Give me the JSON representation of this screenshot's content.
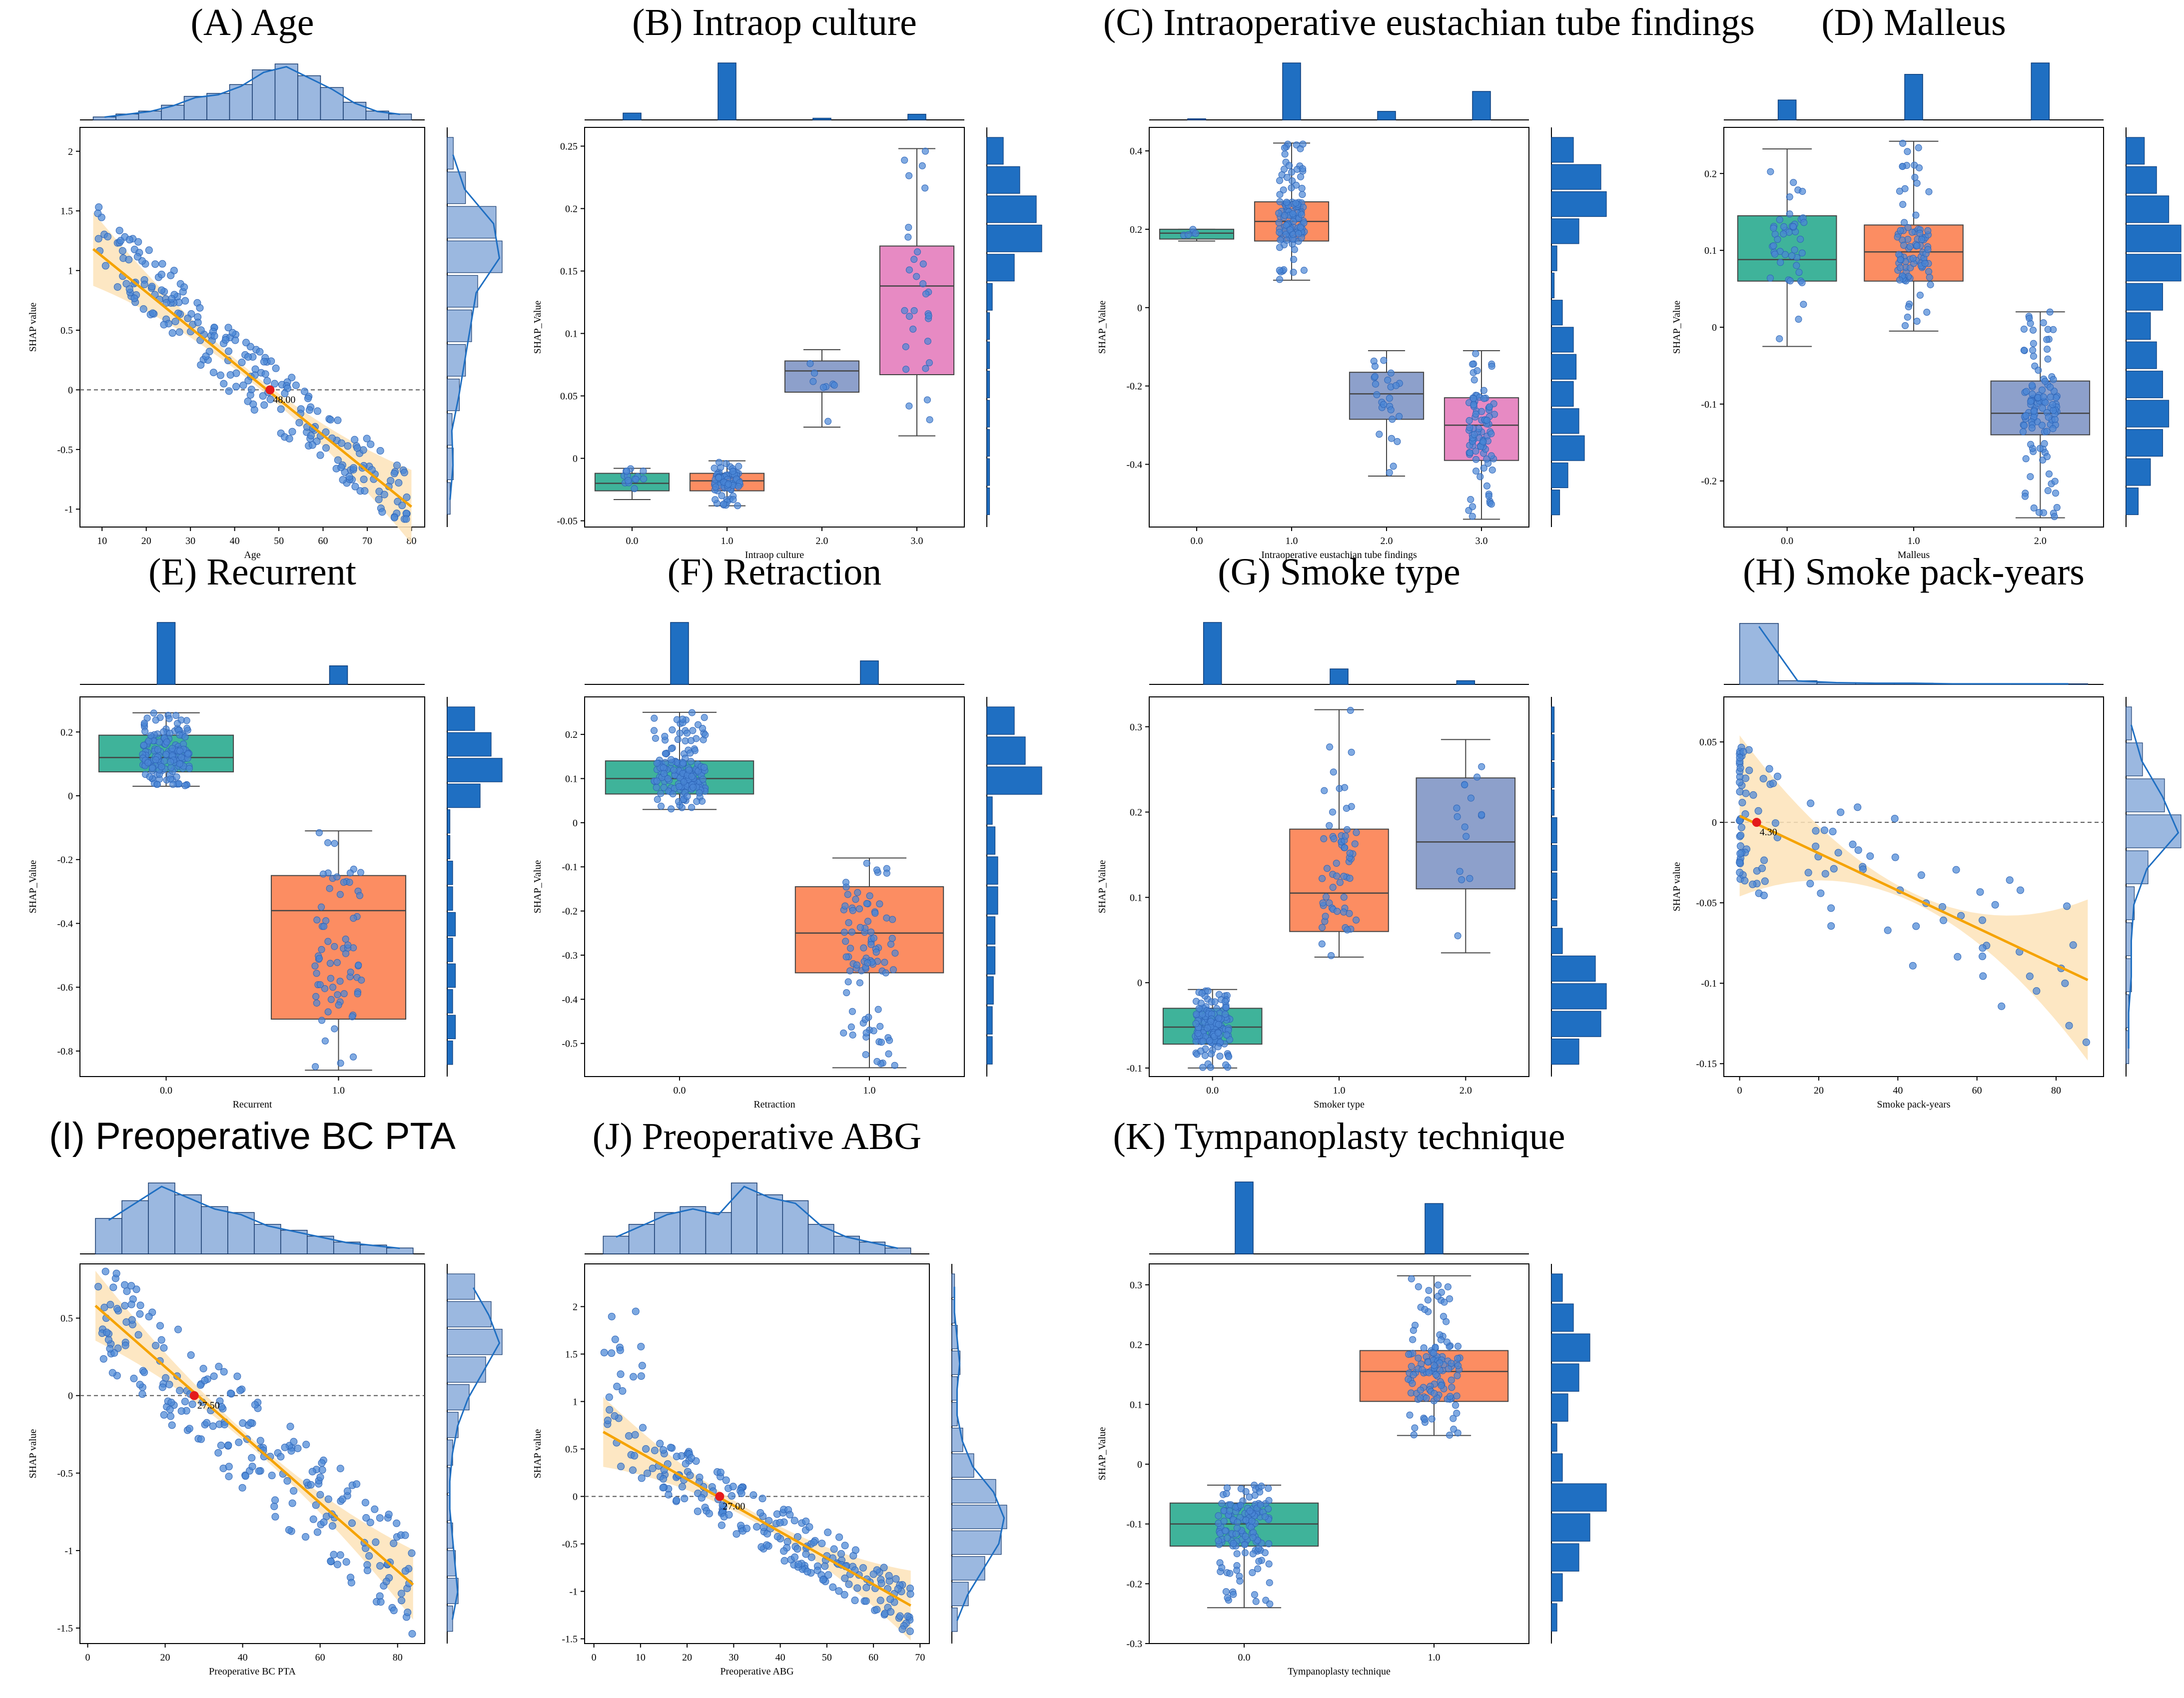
{
  "figure": {
    "title": "SHAP dependence plots with marginal distributions"
  },
  "colors": {
    "scatter": "#4a86d6",
    "scatter_edge": "#2f66b8",
    "fit_line": "#f5a300",
    "ci_band": "#fde3b8",
    "hist_bar": "#1f6fc2",
    "hist_light": "#9bb8e0",
    "box_teal": "#3fb39a",
    "box_orange": "#fc8d62",
    "box_purple": "#8da0cb",
    "box_pink": "#e78ac3",
    "zero_line": "#555555",
    "ref_point": "#e41a1c"
  },
  "chart_data": [
    {
      "id": "A",
      "title": "(A) Age",
      "type": "scatter",
      "xlabel": "Age",
      "ylabel": "SHAP value",
      "xlim": [
        5,
        83
      ],
      "ylim": [
        -1.15,
        2.2
      ],
      "xticks": [
        10,
        20,
        30,
        40,
        50,
        60,
        70,
        80
      ],
      "yticks": [
        -1.0,
        -0.5,
        0.0,
        0.5,
        1.0,
        1.5,
        2.0
      ],
      "trend": {
        "x": [
          8,
          80
        ],
        "y": [
          1.18,
          -0.98
        ]
      },
      "ref_point": {
        "x": 48,
        "y": 0.0,
        "label": "48.00"
      },
      "cloud": {
        "x_range": [
          8,
          80
        ],
        "jitter": 0.28,
        "n": 240
      },
      "top_hist": [
        1,
        2,
        3,
        5,
        8,
        9,
        12,
        17,
        19,
        15,
        11,
        6,
        3,
        2
      ],
      "right_hist": [
        0.5,
        1,
        0.8,
        2,
        3,
        4,
        5,
        9,
        8,
        3,
        1
      ]
    },
    {
      "id": "B",
      "title": "(B) Intraop culture",
      "type": "box",
      "xlabel": "Intraop culture",
      "ylabel": "SHAP_Value",
      "categories": [
        "0.0",
        "1.0",
        "2.0",
        "3.0"
      ],
      "ylim": [
        -0.055,
        0.265
      ],
      "yticks": [
        -0.05,
        0.0,
        0.05,
        0.1,
        0.15,
        0.2,
        0.25
      ],
      "boxes": [
        {
          "min": -0.033,
          "q1": -0.026,
          "median": -0.02,
          "q3": -0.012,
          "max": -0.008,
          "n": 14
        },
        {
          "min": -0.038,
          "q1": -0.026,
          "median": -0.018,
          "q3": -0.012,
          "max": -0.002,
          "n": 80
        },
        {
          "min": 0.025,
          "q1": 0.053,
          "median": 0.07,
          "q3": 0.078,
          "max": 0.087,
          "n": 8
        },
        {
          "min": 0.018,
          "q1": 0.067,
          "median": 0.138,
          "q3": 0.17,
          "max": 0.248,
          "n": 30
        }
      ],
      "top_hist": [
        0.12,
        1.0,
        0.03,
        0.1
      ],
      "right_hist": [
        0.05,
        0.05,
        0.05,
        0.05,
        0.05,
        0.05,
        0.05,
        0.1,
        0.5,
        1.0,
        0.9,
        0.6,
        0.3
      ]
    },
    {
      "id": "C",
      "title": "(C) Intraoperative eustachian tube findings",
      "type": "box",
      "xlabel": "Intraoperative eustachian tube findings",
      "ylabel": "SHAP_Value",
      "categories": [
        "0.0",
        "1.0",
        "2.0",
        "3.0"
      ],
      "ylim": [
        -0.56,
        0.46
      ],
      "yticks": [
        -0.4,
        -0.2,
        0.0,
        0.2,
        0.4
      ],
      "boxes": [
        {
          "min": 0.17,
          "q1": 0.175,
          "median": 0.19,
          "q3": 0.2,
          "max": 0.2,
          "n": 5
        },
        {
          "min": 0.07,
          "q1": 0.17,
          "median": 0.22,
          "q3": 0.27,
          "max": 0.42,
          "n": 120
        },
        {
          "min": -0.43,
          "q1": -0.285,
          "median": -0.22,
          "q3": -0.165,
          "max": -0.11,
          "n": 25
        },
        {
          "min": -0.54,
          "q1": -0.39,
          "median": -0.3,
          "q3": -0.23,
          "max": -0.11,
          "n": 90
        }
      ],
      "top_hist": [
        0.02,
        1.0,
        0.15,
        0.5
      ],
      "right_hist": [
        0.15,
        0.3,
        0.6,
        0.5,
        0.4,
        0.45,
        0.4,
        0.2,
        0.05,
        0.1,
        0.5,
        1.0,
        0.9,
        0.4
      ]
    },
    {
      "id": "D",
      "title": "(D) Malleus",
      "type": "box",
      "xlabel": "Malleus",
      "ylabel": "SHAP_Value",
      "categories": [
        "0.0",
        "1.0",
        "2.0"
      ],
      "ylim": [
        -0.26,
        0.26
      ],
      "yticks": [
        -0.2,
        -0.1,
        0.0,
        0.1,
        0.2
      ],
      "boxes": [
        {
          "min": -0.025,
          "q1": 0.06,
          "median": 0.088,
          "q3": 0.145,
          "max": 0.232,
          "n": 45
        },
        {
          "min": -0.005,
          "q1": 0.06,
          "median": 0.098,
          "q3": 0.133,
          "max": 0.242,
          "n": 90
        },
        {
          "min": -0.248,
          "q1": -0.14,
          "median": -0.112,
          "q3": -0.07,
          "max": 0.02,
          "n": 110
        }
      ],
      "top_hist": [
        0.35,
        0.8,
        1.0
      ],
      "right_hist": [
        0.2,
        0.4,
        0.6,
        0.7,
        0.6,
        0.5,
        0.4,
        0.6,
        0.9,
        0.9,
        0.7,
        0.5,
        0.3
      ]
    },
    {
      "id": "E",
      "title": "(E) Recurrent",
      "type": "box",
      "xlabel": "Recurrent",
      "ylabel": "SHAP_Value",
      "categories": [
        "0.0",
        "1.0"
      ],
      "ylim": [
        -0.88,
        0.31
      ],
      "yticks": [
        -0.8,
        -0.6,
        -0.4,
        -0.2,
        0.0,
        0.2
      ],
      "boxes": [
        {
          "min": 0.03,
          "q1": 0.075,
          "median": 0.12,
          "q3": 0.19,
          "max": 0.26,
          "n": 160
        },
        {
          "min": -0.86,
          "q1": -0.7,
          "median": -0.36,
          "q3": -0.25,
          "max": -0.11,
          "n": 70
        }
      ],
      "top_hist": [
        1.0,
        0.3
      ],
      "right_hist": [
        0.1,
        0.15,
        0.1,
        0.15,
        0.1,
        0.15,
        0.1,
        0.1,
        0.05,
        0.05,
        0.6,
        1.0,
        0.8,
        0.5
      ]
    },
    {
      "id": "F",
      "title": "(F) Retraction",
      "type": "box",
      "xlabel": "Retraction",
      "ylabel": "SHAP_Value",
      "categories": [
        "0.0",
        "1.0"
      ],
      "ylim": [
        -0.575,
        0.285
      ],
      "yticks": [
        -0.5,
        -0.4,
        -0.3,
        -0.2,
        -0.1,
        0.0,
        0.1,
        0.2
      ],
      "boxes": [
        {
          "min": 0.03,
          "q1": 0.065,
          "median": 0.1,
          "q3": 0.14,
          "max": 0.25,
          "n": 170
        },
        {
          "min": -0.555,
          "q1": -0.34,
          "median": -0.25,
          "q3": -0.145,
          "max": -0.08,
          "n": 90
        }
      ],
      "top_hist": [
        1.0,
        0.38
      ],
      "right_hist": [
        0.1,
        0.1,
        0.12,
        0.15,
        0.15,
        0.2,
        0.2,
        0.15,
        0.1,
        1.0,
        0.7,
        0.5
      ]
    },
    {
      "id": "G",
      "title": "(G) Smoke type",
      "type": "box",
      "xlabel": "Smoker type",
      "ylabel": "SHAP_Value",
      "categories": [
        "0.0",
        "1.0",
        "2.0"
      ],
      "ylim": [
        -0.11,
        0.335
      ],
      "yticks": [
        -0.1,
        0.0,
        0.1,
        0.2,
        0.3
      ],
      "boxes": [
        {
          "min": -0.1,
          "q1": -0.072,
          "median": -0.052,
          "q3": -0.03,
          "max": -0.008,
          "n": 150
        },
        {
          "min": 0.03,
          "q1": 0.06,
          "median": 0.105,
          "q3": 0.18,
          "max": 0.32,
          "n": 60
        },
        {
          "min": 0.035,
          "q1": 0.11,
          "median": 0.165,
          "q3": 0.24,
          "max": 0.285,
          "n": 15
        }
      ],
      "top_hist": [
        1.0,
        0.25,
        0.06
      ],
      "right_hist": [
        0.5,
        0.9,
        1.0,
        0.8,
        0.2,
        0.1,
        0.1,
        0.1,
        0.1,
        0.05,
        0.05,
        0.05,
        0.05
      ]
    },
    {
      "id": "H",
      "title": "(H) Smoke pack-years",
      "type": "scatter",
      "xlabel": "Smoke pack-years",
      "ylabel": "SHAP value",
      "xlim": [
        -4,
        92
      ],
      "ylim": [
        -0.158,
        0.078
      ],
      "xticks": [
        0,
        20,
        40,
        60,
        80
      ],
      "yticks": [
        -0.15,
        -0.1,
        -0.05,
        0.0,
        0.05
      ],
      "trend": {
        "x": [
          0,
          88
        ],
        "y": [
          0.004,
          -0.098
        ]
      },
      "ref_point": {
        "x": 4.3,
        "y": 0.0,
        "label": "4.30"
      },
      "cloud": {
        "x_range": [
          0,
          88
        ],
        "jitter": 0.045,
        "n": 110
      },
      "top_hist": [
        1.0,
        0.06,
        0.03,
        0.02,
        0.02,
        0.01,
        0.01,
        0.01,
        0.01
      ],
      "right_hist": [
        0.05,
        0.05,
        0.1,
        0.1,
        0.15,
        0.4,
        1.0,
        0.7,
        0.3,
        0.1
      ]
    },
    {
      "id": "I",
      "title": "(I) Preoperative BC PTA",
      "type": "scatter",
      "xlabel": "Preoperative BC PTA",
      "ylabel": "SHAP value",
      "xlim": [
        -2,
        87
      ],
      "ylim": [
        -1.6,
        0.85
      ],
      "xticks": [
        0,
        20,
        40,
        60,
        80
      ],
      "yticks": [
        -1.5,
        -1.0,
        -0.5,
        0.0,
        0.5
      ],
      "trend": {
        "x": [
          2,
          84
        ],
        "y": [
          0.58,
          -1.22
        ]
      },
      "ref_point": {
        "x": 27.5,
        "y": 0.0,
        "label": "27.50"
      },
      "cloud": {
        "x_range": [
          2,
          84
        ],
        "jitter": 0.35,
        "n": 230
      },
      "top_hist": [
        6,
        9,
        12,
        10,
        8,
        7,
        5,
        4,
        3,
        2,
        1.5,
        1
      ],
      "right_hist": [
        0.1,
        0.2,
        0.15,
        0.1,
        0.05,
        0.05,
        0.1,
        0.2,
        0.4,
        0.7,
        1.0,
        0.8,
        0.5
      ]
    },
    {
      "id": "J",
      "title": "(J) Preoperative ABG",
      "type": "scatter",
      "xlabel": "Preoperative ABG",
      "ylabel": "SHAP value",
      "xlim": [
        -2,
        72
      ],
      "ylim": [
        -1.55,
        2.45
      ],
      "xticks": [
        0,
        10,
        20,
        30,
        40,
        50,
        60,
        70
      ],
      "yticks": [
        -1.5,
        -1.0,
        -0.5,
        0.0,
        0.5,
        1.0,
        1.5,
        2.0
      ],
      "trend": {
        "x": [
          2,
          68
        ],
        "y": [
          0.68,
          -1.15
        ]
      },
      "ref_point": {
        "x": 27,
        "y": 0.0,
        "label": "27.00"
      },
      "cloud": {
        "x_range": [
          2,
          68
        ],
        "jitter": 0.3,
        "n": 240
      },
      "top_hist": [
        3,
        5,
        7,
        8,
        7,
        12,
        10,
        9,
        5,
        3,
        2,
        1
      ],
      "right_hist": [
        0.1,
        0.3,
        0.6,
        0.9,
        1.0,
        0.8,
        0.4,
        0.2,
        0.1,
        0.1,
        0.15,
        0.1,
        0.05,
        0.05
      ]
    },
    {
      "id": "K",
      "title": "(K) Tympanoplasty technique",
      "type": "box",
      "xlabel": "Tympanoplasty technique",
      "ylabel": "SHAP_Value",
      "categories": [
        "0.0",
        "1.0"
      ],
      "ylim": [
        -0.3,
        0.335
      ],
      "yticks": [
        -0.3,
        -0.2,
        -0.1,
        0.0,
        0.1,
        0.2,
        0.3
      ],
      "boxes": [
        {
          "min": -0.24,
          "q1": -0.137,
          "median": -0.1,
          "q3": -0.065,
          "max": -0.035,
          "n": 140
        },
        {
          "min": 0.048,
          "q1": 0.105,
          "median": 0.155,
          "q3": 0.19,
          "max": 0.315,
          "n": 120
        }
      ],
      "top_hist": [
        1.0,
        0.7
      ],
      "right_hist": [
        0.1,
        0.2,
        0.5,
        0.7,
        1.0,
        0.2,
        0.1,
        0.3,
        0.5,
        0.7,
        0.4,
        0.2
      ]
    }
  ]
}
